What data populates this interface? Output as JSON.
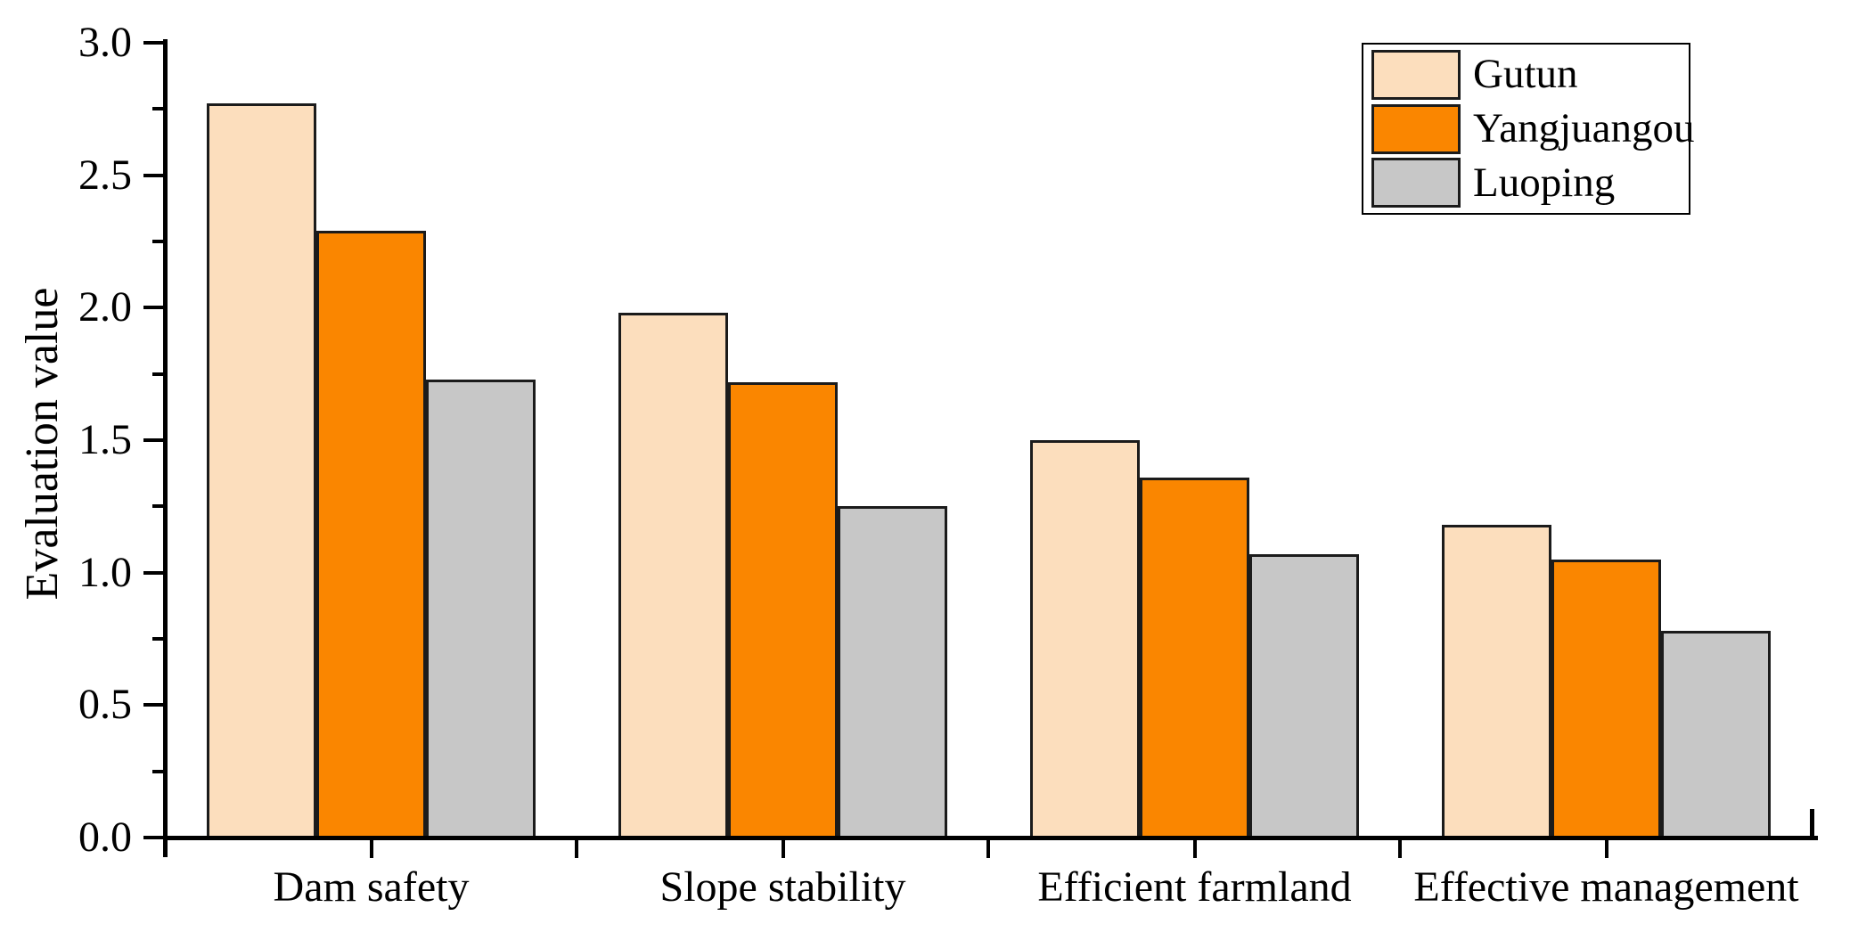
{
  "figure": {
    "background": "#ffffff",
    "axis_color": "#000000",
    "bar_border_color": "#1b1b1b"
  },
  "chart_data": {
    "type": "bar",
    "title": "",
    "xlabel": "",
    "ylabel": "Evaluation value",
    "categories": [
      "Dam safety",
      "Slope stability",
      "Efficient farmland",
      "Effective management"
    ],
    "series": [
      {
        "name": "Gutun",
        "color": "#FCDEBD",
        "values": [
          2.77,
          1.98,
          1.5,
          1.18
        ]
      },
      {
        "name": "Yangjuangou",
        "color": "#FA8600",
        "values": [
          2.29,
          1.72,
          1.36,
          1.05
        ]
      },
      {
        "name": "Luoping",
        "color": "#C7C7C7",
        "values": [
          1.73,
          1.25,
          1.07,
          0.78
        ]
      }
    ],
    "ylim": [
      0.0,
      3.0
    ],
    "y_major_ticks": [
      0.0,
      0.5,
      1.0,
      1.5,
      2.0,
      2.5,
      3.0
    ],
    "y_tick_labels": [
      "0.0",
      "0.5",
      "1.0",
      "1.5",
      "2.0",
      "2.5",
      "3.0"
    ],
    "y_minor_ticks": [
      0.25,
      0.75,
      1.25,
      1.75,
      2.25,
      2.75
    ],
    "grid": false,
    "legend_position": "top-right",
    "legend_items": [
      "Gutun",
      "Yangjuangou",
      "Luoping"
    ]
  }
}
